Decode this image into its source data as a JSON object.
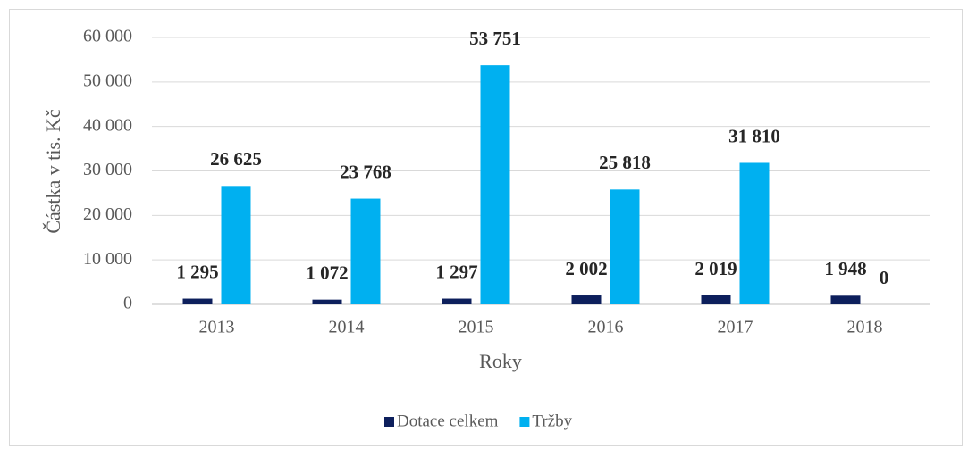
{
  "chart_data": {
    "type": "bar",
    "x_label": "Roky",
    "y_label": "Částka v tis. Kč",
    "categories": [
      "2013",
      "2014",
      "2015",
      "2016",
      "2017",
      "2018"
    ],
    "series": [
      {
        "name": "Dotace celkem",
        "color": "#0d1f5c",
        "values": [
          1295,
          1072,
          1297,
          2002,
          2019,
          1948
        ],
        "value_labels": [
          "1 295",
          "1 072",
          "1 297",
          "2 002",
          "2 019",
          "1 948"
        ]
      },
      {
        "name": "Tržby",
        "color": "#00b0f0",
        "values": [
          26625,
          23768,
          53751,
          25818,
          31810,
          0
        ],
        "value_labels": [
          "26 625",
          "23 768",
          "53 751",
          "25 818",
          "31 810",
          "0"
        ]
      }
    ],
    "ylim": [
      0,
      60000
    ],
    "yticks": [
      0,
      {
        "value": 10000,
        "label": "10 000"
      },
      {
        "value": 20000,
        "label": "20 000"
      },
      {
        "value": 30000,
        "label": "30 000"
      },
      {
        "value": 40000,
        "label": "40 000"
      },
      {
        "value": 50000,
        "label": "50 000"
      },
      {
        "value": 60000,
        "label": "60 000"
      }
    ],
    "grid": true,
    "legend": "bottom"
  }
}
